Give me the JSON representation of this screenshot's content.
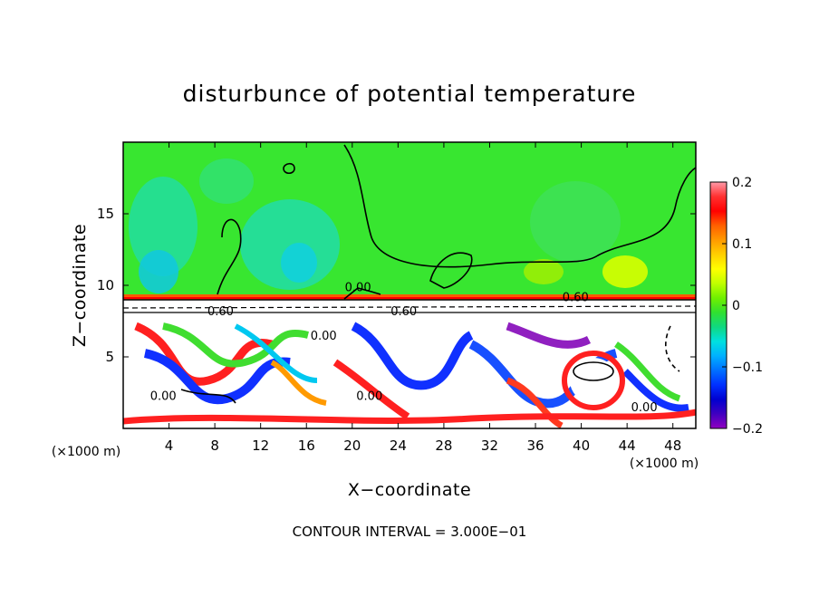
{
  "chart_data": {
    "type": "heatmap",
    "title": "disturbunce of potential temperature",
    "xlabel": "X−coordinate",
    "ylabel": "Z−coordinate",
    "x_unit": "(×1000 m)",
    "y_unit": "(×1000 m)",
    "xlim": [
      0,
      50
    ],
    "ylim": [
      0,
      20
    ],
    "x_ticks": [
      4,
      8,
      12,
      16,
      20,
      24,
      28,
      32,
      36,
      40,
      44,
      48
    ],
    "y_ticks": [
      5,
      10,
      15
    ],
    "colorbar": {
      "range": [
        -0.2,
        0.2
      ],
      "ticks": [
        0.2,
        0.1,
        0,
        -0.1,
        -0.2
      ],
      "tick_labels": [
        "0.2",
        "0.1",
        "0",
        "−0.1",
        "−0.2"
      ],
      "colors": [
        "#ff9aa8",
        "#ff3030",
        "#ff0000",
        "#ff6000",
        "#ff9a00",
        "#ffd000",
        "#ffff00",
        "#c0ff00",
        "#70f000",
        "#30e030",
        "#10d880",
        "#00e0e0",
        "#00b0ff",
        "#0070ff",
        "#0030ff",
        "#0000d0",
        "#4000c0",
        "#9000c0"
      ]
    },
    "contour_labels": [
      {
        "text": "0.00",
        "x": 17.5,
        "z": 6.2
      },
      {
        "text": "0.00",
        "x": 20.5,
        "z": 9.6
      },
      {
        "text": "0.00",
        "x": 3.5,
        "z": 2.0
      },
      {
        "text": "0.00",
        "x": 21.5,
        "z": 2.0
      },
      {
        "text": "0.00",
        "x": 45.5,
        "z": 1.2
      },
      {
        "text": "0.60",
        "x": 8.5,
        "z": 7.9
      },
      {
        "text": "0.60",
        "x": 24.5,
        "z": 7.9
      },
      {
        "text": "0.60",
        "x": 39.5,
        "z": 8.9
      }
    ],
    "contour_interval_label": "CONTOUR INTERVAL = 3.000E−01"
  }
}
